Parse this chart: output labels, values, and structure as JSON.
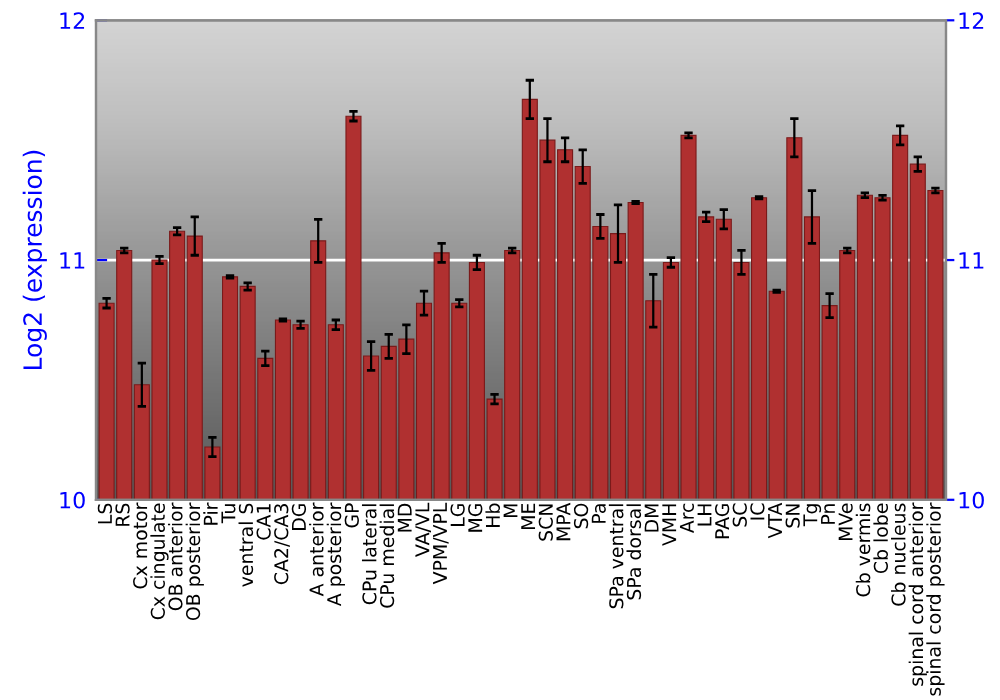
{
  "chart_data": {
    "type": "bar",
    "ylabel": "Log2 (expression)",
    "categories": [
      "LS",
      "RS",
      "Cx motor",
      "Cx cingulate",
      "OB anterior",
      "OB posterior",
      "Pir",
      "Tu",
      "ventral S",
      "CA1",
      "CA2/CA3",
      "DG",
      "A anterior",
      "A posterior",
      "GP",
      "CPu lateral",
      "CPu medial",
      "MD",
      "VA/VL",
      "VPM/VPL",
      "LG",
      "MG",
      "Hb",
      "M",
      "ME",
      "SCN",
      "MPA",
      "SO",
      "Pa",
      "SPa ventral",
      "SPa dorsal",
      "DM",
      "VMH",
      "Arc",
      "LH",
      "PAG",
      "SC",
      "IC",
      "VTA",
      "SN",
      "Tg",
      "Pn",
      "MVe",
      "Cb vermis",
      "Cb lobe",
      "Cb nucleus",
      "spinal cord anterior",
      "spinal cord posterior"
    ],
    "values": [
      10.82,
      11.04,
      10.48,
      11.0,
      11.12,
      11.1,
      10.22,
      10.93,
      10.89,
      10.59,
      10.75,
      10.73,
      11.08,
      10.73,
      11.6,
      10.6,
      10.64,
      10.67,
      10.82,
      11.03,
      10.82,
      10.99,
      10.42,
      11.04,
      11.67,
      11.5,
      11.46,
      11.39,
      11.14,
      11.11,
      11.24,
      10.83,
      10.99,
      11.52,
      11.18,
      11.17,
      10.99,
      11.26,
      10.87,
      11.51,
      11.18,
      10.81,
      11.04,
      11.27,
      11.26,
      11.52,
      11.4,
      11.29
    ],
    "errors": [
      0.02,
      0.01,
      0.09,
      0.015,
      0.015,
      0.08,
      0.04,
      0.005,
      0.015,
      0.03,
      0.005,
      0.015,
      0.09,
      0.02,
      0.02,
      0.06,
      0.05,
      0.06,
      0.05,
      0.04,
      0.015,
      0.03,
      0.02,
      0.01,
      0.08,
      0.09,
      0.05,
      0.07,
      0.05,
      0.12,
      0.005,
      0.11,
      0.02,
      0.01,
      0.02,
      0.04,
      0.05,
      0.005,
      0.005,
      0.08,
      0.11,
      0.05,
      0.01,
      0.01,
      0.01,
      0.04,
      0.03,
      0.01
    ],
    "color": "#b03030",
    "ylim": [
      10,
      12
    ],
    "yticks": [
      10,
      11,
      12
    ],
    "y2lim": [
      10,
      12
    ],
    "y2ticks": [
      10,
      11,
      12
    ],
    "ref_lines": [
      {
        "axis": "y",
        "value": 11,
        "color": "#ffffff"
      }
    ],
    "grid": false
  }
}
